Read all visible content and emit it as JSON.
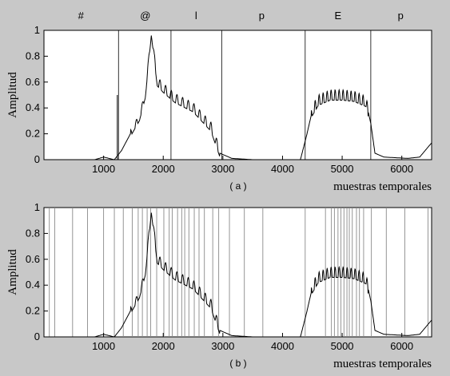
{
  "chart_data": [
    {
      "type": "line",
      "panel_label": "( a )",
      "xlabel": "muestras temporales",
      "ylabel": "Amplitud",
      "xlim": [
        0,
        6500
      ],
      "ylim": [
        0,
        1
      ],
      "xticks": [
        1000,
        2000,
        3000,
        4000,
        5000,
        6000
      ],
      "xtick_labels": [
        "1000",
        "2000",
        "3000",
        "4000",
        "5000",
        "6000"
      ],
      "yticks": [
        0,
        0.2,
        0.4,
        0.6,
        0.8,
        1
      ],
      "ytick_labels": [
        "0",
        "0.2",
        "0.4",
        "0.6",
        "0.8",
        "1"
      ],
      "grid": false,
      "segment_labels": [
        {
          "text": "#",
          "x": 620
        },
        {
          "text": "@",
          "x": 1700
        },
        {
          "text": "l",
          "x": 2550
        },
        {
          "text": "p",
          "x": 3650
        },
        {
          "text": "E",
          "x": 4930
        },
        {
          "text": "p",
          "x": 5980
        }
      ],
      "boundaries": [
        1250,
        2130,
        2980,
        4380,
        5480
      ],
      "envelope_points": [
        [
          0,
          0
        ],
        [
          850,
          0
        ],
        [
          1000,
          0.02
        ],
        [
          1180,
          0
        ],
        [
          1300,
          0.07
        ],
        [
          1450,
          0.2
        ],
        [
          1600,
          0.32
        ],
        [
          1700,
          0.5
        ],
        [
          1800,
          0.98
        ],
        [
          1900,
          0.6
        ],
        [
          2000,
          0.55
        ],
        [
          2200,
          0.47
        ],
        [
          2500,
          0.4
        ],
        [
          2800,
          0.25
        ],
        [
          2950,
          0.05
        ],
        [
          3150,
          0.01
        ],
        [
          3500,
          0
        ],
        [
          4300,
          0
        ],
        [
          4400,
          0.18
        ],
        [
          4500,
          0.38
        ],
        [
          4600,
          0.46
        ],
        [
          4800,
          0.5
        ],
        [
          5000,
          0.5
        ],
        [
          5200,
          0.49
        ],
        [
          5400,
          0.45
        ],
        [
          5480,
          0.28
        ],
        [
          5550,
          0.05
        ],
        [
          5700,
          0.02
        ],
        [
          6100,
          0.01
        ],
        [
          6300,
          0.02
        ],
        [
          6500,
          0.13
        ]
      ],
      "spike": {
        "x": 1230,
        "y": 0.5
      }
    },
    {
      "type": "line",
      "panel_label": "( b )",
      "xlabel": "muestras temporales",
      "ylabel": "Amplitud",
      "xlim": [
        0,
        6500
      ],
      "ylim": [
        0,
        1
      ],
      "xticks": [
        1000,
        2000,
        3000,
        4000,
        5000,
        6000
      ],
      "xtick_labels": [
        "1000",
        "2000",
        "3000",
        "4000",
        "5000",
        "6000"
      ],
      "yticks": [
        0,
        0.2,
        0.4,
        0.6,
        0.8,
        1
      ],
      "ytick_labels": [
        "0",
        "0.2",
        "0.4",
        "0.6",
        "0.8",
        "1"
      ],
      "grid": false,
      "boundaries": [
        90,
        180,
        480,
        730,
        1000,
        1180,
        1330,
        1480,
        1580,
        1650,
        1730,
        1790,
        1890,
        2010,
        2100,
        2150,
        2240,
        2310,
        2360,
        2430,
        2520,
        2600,
        2690,
        2830,
        2930,
        3110,
        3360,
        3670,
        4380,
        4720,
        4820,
        4870,
        4930,
        4980,
        5030,
        5080,
        5120,
        5170,
        5240,
        5290,
        5360,
        5490,
        5740,
        6050,
        6440
      ],
      "envelope_points": [
        [
          0,
          0
        ],
        [
          850,
          0
        ],
        [
          1000,
          0.02
        ],
        [
          1180,
          0
        ],
        [
          1300,
          0.07
        ],
        [
          1450,
          0.2
        ],
        [
          1600,
          0.32
        ],
        [
          1700,
          0.5
        ],
        [
          1800,
          0.98
        ],
        [
          1900,
          0.6
        ],
        [
          2000,
          0.55
        ],
        [
          2200,
          0.47
        ],
        [
          2500,
          0.4
        ],
        [
          2800,
          0.25
        ],
        [
          2950,
          0.05
        ],
        [
          3150,
          0.01
        ],
        [
          3500,
          0
        ],
        [
          4300,
          0
        ],
        [
          4400,
          0.18
        ],
        [
          4500,
          0.38
        ],
        [
          4600,
          0.46
        ],
        [
          4800,
          0.5
        ],
        [
          5000,
          0.5
        ],
        [
          5200,
          0.49
        ],
        [
          5400,
          0.45
        ],
        [
          5480,
          0.28
        ],
        [
          5550,
          0.05
        ],
        [
          5700,
          0.02
        ],
        [
          6100,
          0.01
        ],
        [
          6300,
          0.02
        ],
        [
          6500,
          0.13
        ]
      ]
    }
  ]
}
